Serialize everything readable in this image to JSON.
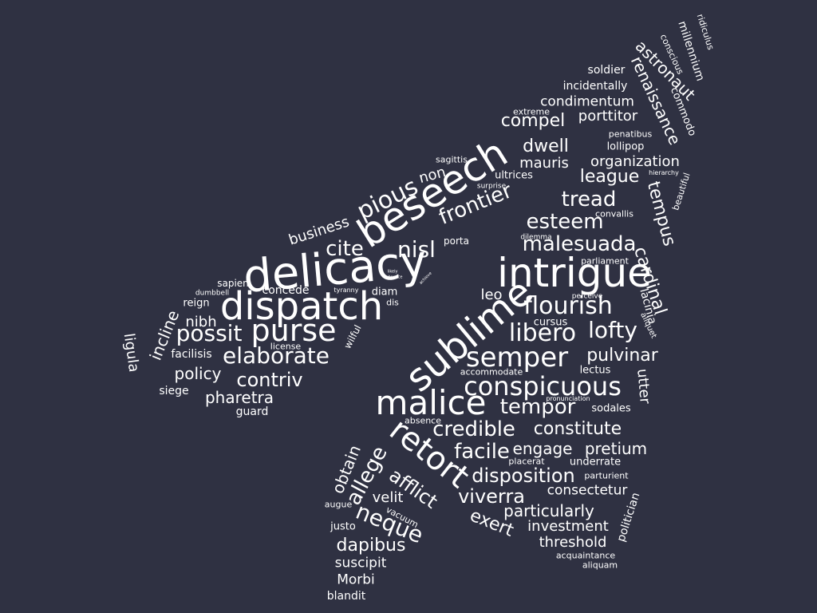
{
  "background_color": "#2f3142",
  "word_color": "#ffffff",
  "words": [
    "delicacy",
    "intrigue",
    "dispatch",
    "beseech",
    "sublime",
    "malice",
    "retort",
    "purse",
    "semper",
    "conspicuous",
    "pious",
    "flourish",
    "nisl",
    "frontier",
    "credible",
    "possit",
    "elaborate",
    "lofty",
    "libero",
    "tempor",
    "esteem",
    "malesuada",
    "neque",
    "cite",
    "tread",
    "facile",
    "disposition",
    "allege",
    "afflict",
    "viverra",
    "contriv",
    "pulvinar",
    "dapibus",
    "constitute",
    "engage",
    "pretium",
    "exert",
    "particularly",
    "investment",
    "threshold",
    "cardinal",
    "tempus",
    "renaissance",
    "astronaut",
    "league",
    "dwell",
    "compel",
    "porttitor",
    "condimentum",
    "organization",
    "mauris",
    "non",
    "business",
    "policy",
    "pharetra",
    "incline",
    "ligula",
    "obtain",
    "velit",
    "nibh",
    "Morbi",
    "suscipit",
    "leo",
    "utter",
    "consectetur",
    "politician",
    "millennium",
    "commodo",
    "lacinia",
    "reign",
    "concede",
    "sapien",
    "dumbbell",
    "facilisis",
    "siege",
    "guard",
    "license",
    "wilful",
    "tyranny",
    "diam",
    "dis",
    "porta",
    "ultrices",
    "sagittis",
    "surprise",
    "soldier",
    "incidentally",
    "extreme",
    "penatibus",
    "lollipop",
    "hierarchy",
    "beautiful",
    "convallis",
    "dilemma",
    "parliament",
    "perceive",
    "aliquet",
    "cursus",
    "accommodate",
    "lectus",
    "pronunciation",
    "sodales",
    "absence",
    "placerat",
    "underrate",
    "parturient",
    "augue",
    "vacuum",
    "justo",
    "acquaintance",
    "aliquam",
    "blandit",
    "conscious",
    "ridiculus",
    "likely",
    "achieve",
    "absence"
  ]
}
